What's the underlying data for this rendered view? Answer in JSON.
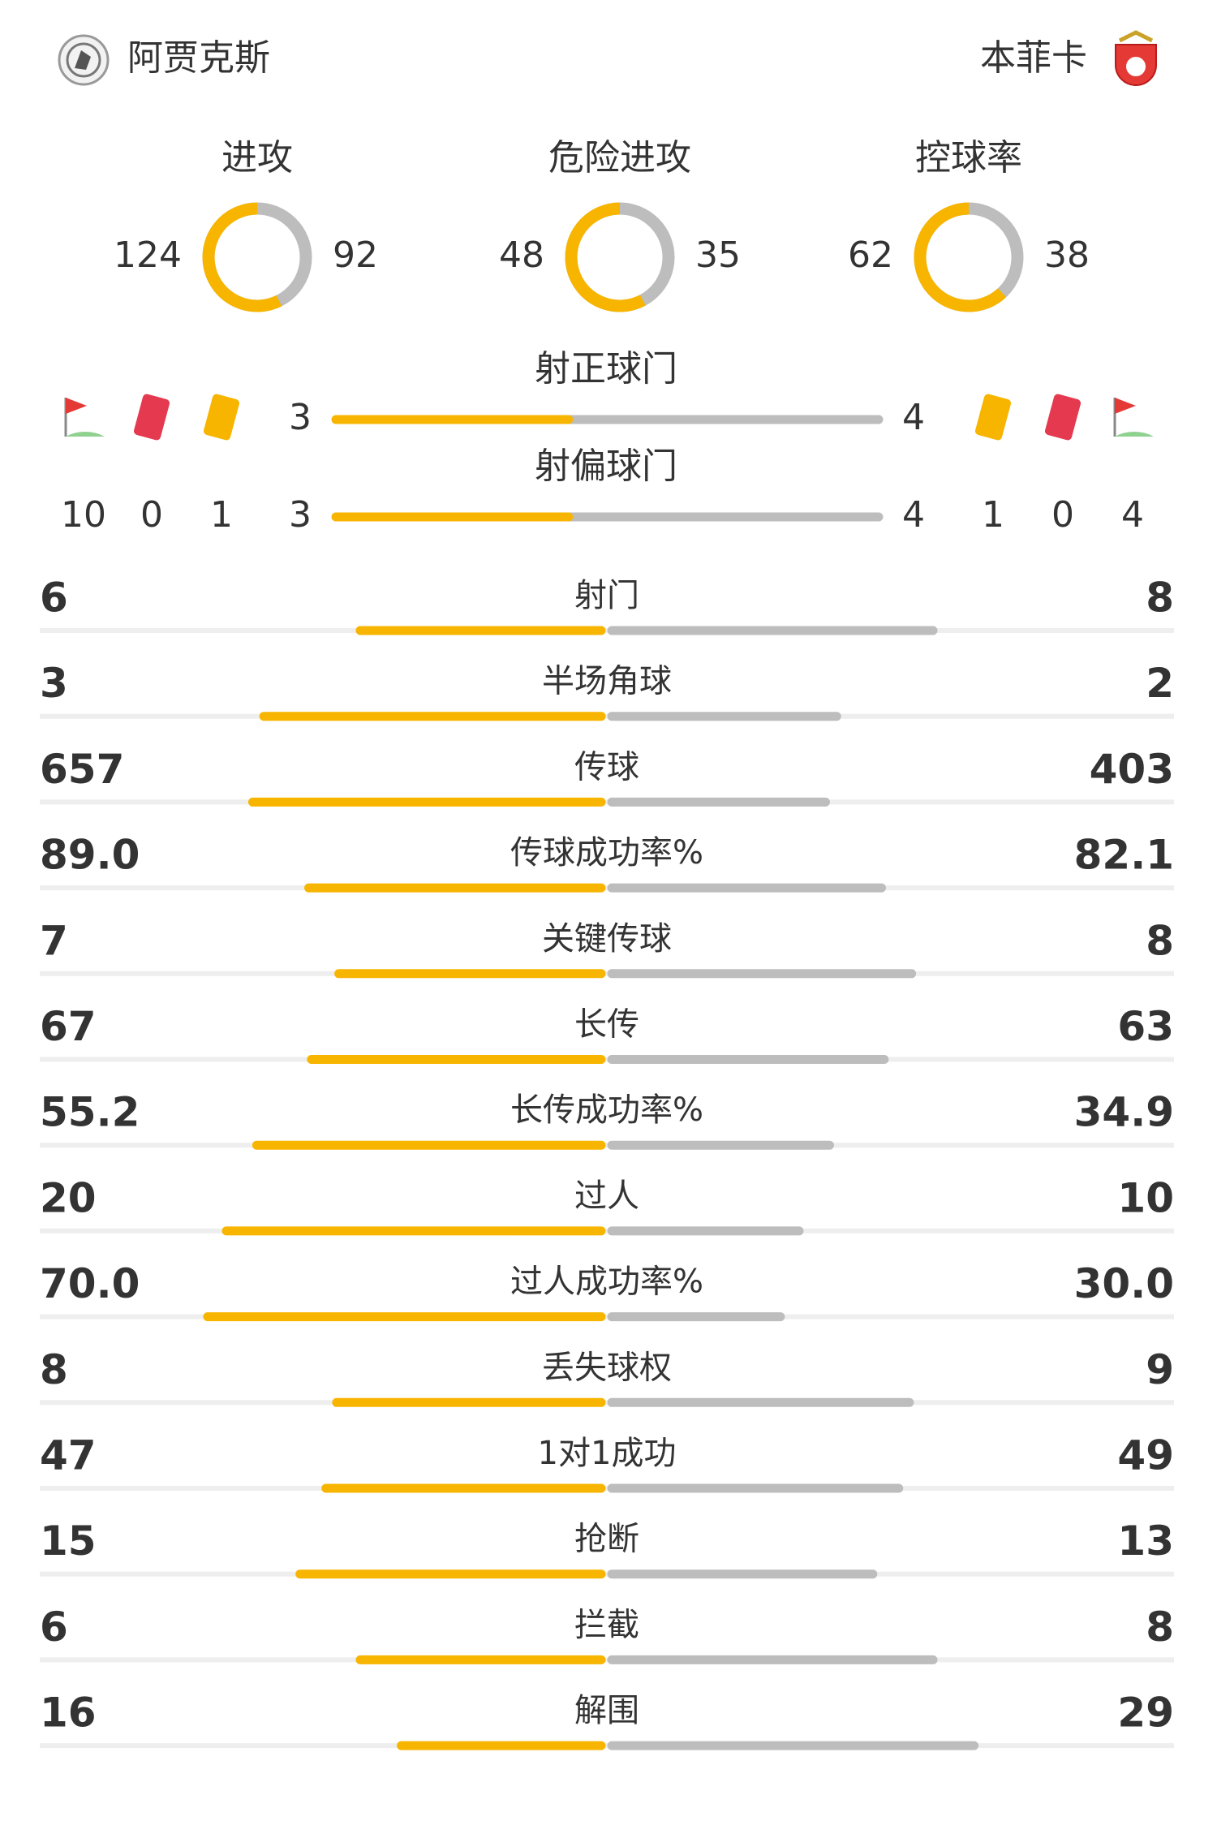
{
  "teams": {
    "home": "阿贾克斯",
    "away": "本菲卡"
  },
  "rings": [
    {
      "label": "进攻",
      "home": 124,
      "away": 92
    },
    {
      "label": "危险进攻",
      "home": 48,
      "away": 35
    },
    {
      "label": "控球率",
      "home": 62,
      "away": 38
    }
  ],
  "shots_on_target": {
    "label": "射正球门",
    "home": 3,
    "away": 4
  },
  "shots_off_target": {
    "label": "射偏球门",
    "home": 3,
    "away": 4
  },
  "events": {
    "home": {
      "corners": 10,
      "red_cards": 0,
      "yellow_cards": 1
    },
    "away": {
      "corners": 4,
      "red_cards": 0,
      "yellow_cards": 1
    }
  },
  "stats": [
    {
      "label": "射门",
      "home": 6,
      "away": 8
    },
    {
      "label": "半场角球",
      "home": 3,
      "away": 2
    },
    {
      "label": "传球",
      "home": 657,
      "away": 403
    },
    {
      "label": "传球成功率%",
      "home": {
        "value": 89,
        "label": "89.0"
      },
      "away": 82.1
    },
    {
      "label": "关键传球",
      "home": 7,
      "away": 8
    },
    {
      "label": "长传",
      "home": 67,
      "away": 63
    },
    {
      "label": "长传成功率%",
      "home": 55.2,
      "away": 34.9
    },
    {
      "label": "过人",
      "home": 20,
      "away": 10
    },
    {
      "label": "过人成功率%",
      "home": {
        "value": 70,
        "label": "70.0"
      },
      "away": {
        "value": 30,
        "label": "30.0"
      }
    },
    {
      "label": "丢失球权",
      "home": 8,
      "away": 9
    },
    {
      "label": "1对1成功",
      "home": 47,
      "away": 49
    },
    {
      "label": "抢断",
      "home": 15,
      "away": 13
    },
    {
      "label": "拦截",
      "home": 6,
      "away": 8
    },
    {
      "label": "解围",
      "home": 16,
      "away": 29
    }
  ]
}
